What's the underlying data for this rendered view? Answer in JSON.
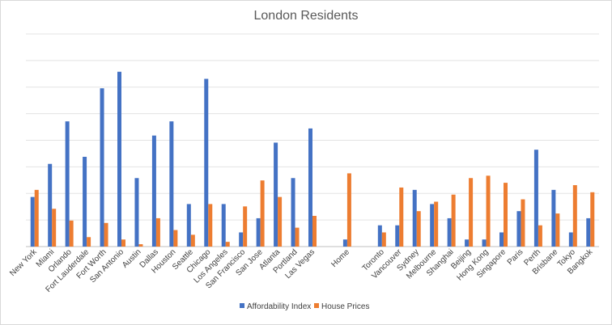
{
  "chart_data": {
    "type": "bar",
    "title": "London Residents",
    "xlabel": "",
    "ylabel": "",
    "ylim": [
      0,
      0.9
    ],
    "grid": true,
    "legend_position": "bottom",
    "categories": [
      "New York",
      "Miami",
      "Orlando",
      "Fort Lauderdale",
      "Fort Worth",
      "San Antonio",
      "Austin",
      "Dallas",
      "Houston",
      "Seattle",
      "Chicago",
      "Los Angeles",
      "San Francisco",
      "San Jose",
      "Atlanta",
      "Portland",
      "Las Vegas",
      "",
      "Home",
      "",
      "Toronto",
      "Vancouver",
      "Sydney",
      "Melbourne",
      "Shanghai",
      "Beijing",
      "Hong Kong",
      "Singapore",
      "Paris",
      "Perth",
      "Brisbane",
      "Tokyo",
      "Bangkok"
    ],
    "series": [
      {
        "name": "Affordability Index",
        "color": "#4472C4",
        "values": [
          0.21,
          0.35,
          0.53,
          0.38,
          0.67,
          0.74,
          0.29,
          0.47,
          0.53,
          0.18,
          0.71,
          0.18,
          0.06,
          0.12,
          0.44,
          0.29,
          0.5,
          null,
          0.03,
          null,
          0.09,
          0.09,
          0.24,
          0.18,
          0.12,
          0.03,
          0.03,
          0.06,
          0.15,
          0.41,
          0.24,
          0.06,
          0.12
        ]
      },
      {
        "name": "House Prices",
        "color": "#ED7D31",
        "values": [
          0.24,
          0.16,
          0.11,
          0.04,
          0.1,
          0.03,
          0.01,
          0.12,
          0.07,
          0.05,
          0.18,
          0.02,
          0.17,
          0.28,
          0.21,
          0.08,
          0.13,
          null,
          0.31,
          null,
          0.06,
          0.25,
          0.15,
          0.19,
          0.22,
          0.29,
          0.3,
          0.27,
          0.2,
          0.09,
          0.14,
          0.26,
          0.23
        ]
      }
    ]
  }
}
